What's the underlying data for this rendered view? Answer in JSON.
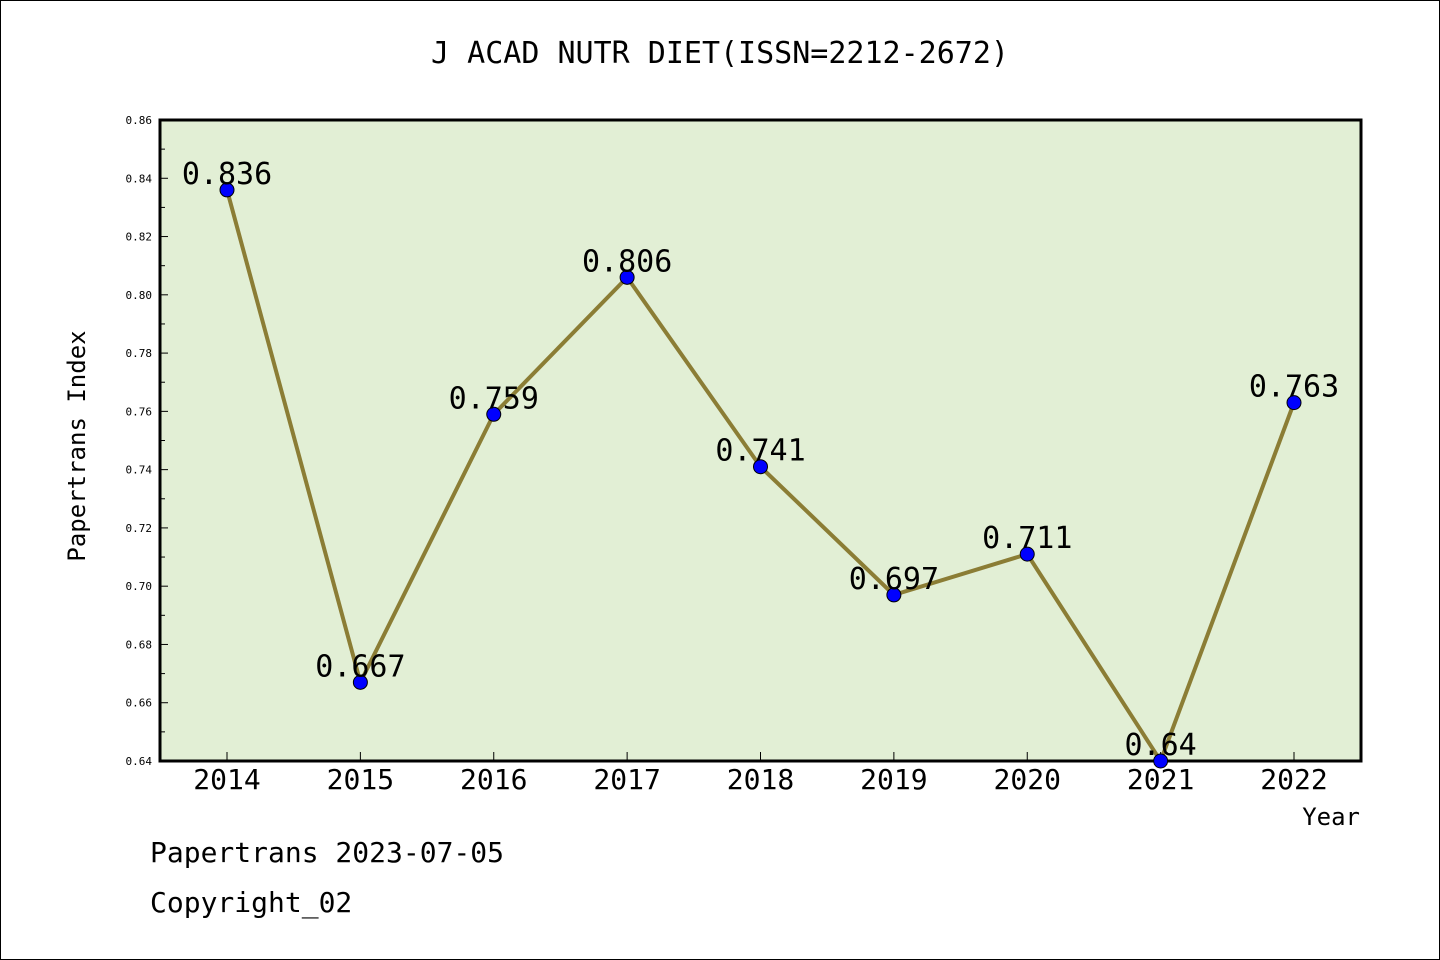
{
  "chart_data": {
    "type": "line",
    "title": "J ACAD NUTR DIET(ISSN=2212-2672)",
    "xlabel": "Year",
    "ylabel": "Papertrans Index",
    "categories": [
      "2014",
      "2015",
      "2016",
      "2017",
      "2018",
      "2019",
      "2020",
      "2021",
      "2022"
    ],
    "values": [
      0.836,
      0.667,
      0.759,
      0.806,
      0.741,
      0.697,
      0.711,
      0.64,
      0.763
    ],
    "data_labels": [
      "0.836",
      "0.667",
      "0.759",
      "0.806",
      "0.741",
      "0.697",
      "0.711",
      "0.64",
      "0.763"
    ],
    "ylim": [
      0.64,
      0.86
    ],
    "yticks": [
      "0.64",
      "0.66",
      "0.68",
      "0.70",
      "0.72",
      "0.74",
      "0.76",
      "0.78",
      "0.80",
      "0.82",
      "0.84",
      "0.86"
    ],
    "grid": false,
    "colors": {
      "plot_bg": "#e2efd5",
      "line": "#8b7d35",
      "marker": "#0000ff"
    }
  },
  "footer": {
    "date": "Papertrans 2023-07-05",
    "copyright": "Copyright_02"
  }
}
